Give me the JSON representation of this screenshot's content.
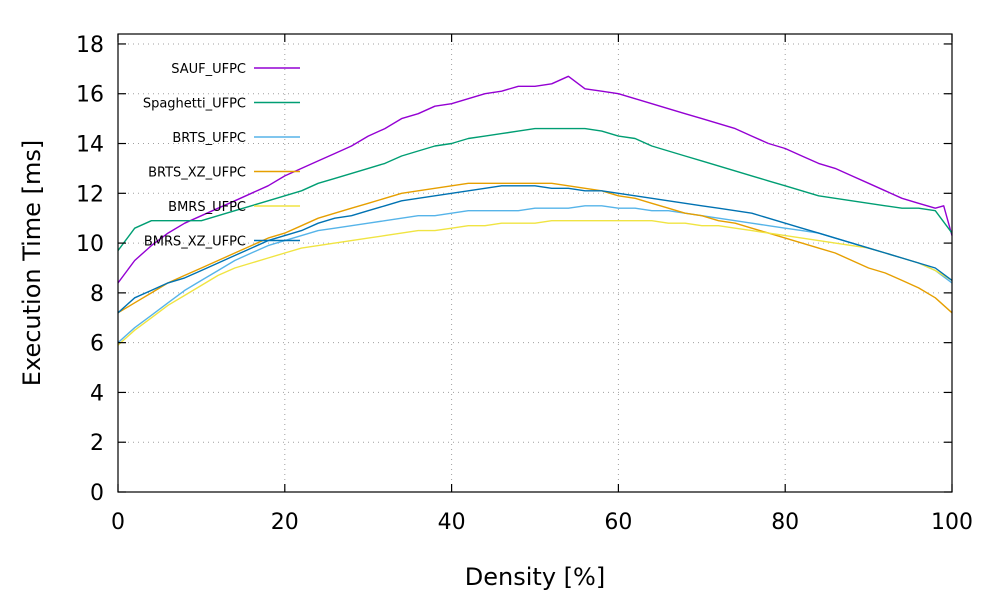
{
  "chart_data": {
    "type": "line",
    "title": "",
    "xlabel": "Density [%]",
    "ylabel": "Execution Time [ms]",
    "xlim": [
      0,
      100
    ],
    "ylim": [
      0,
      18.4
    ],
    "xticks": [
      0,
      20,
      40,
      60,
      80,
      100
    ],
    "yticks": [
      0,
      2,
      4,
      6,
      8,
      10,
      12,
      14,
      16,
      18
    ],
    "grid": true,
    "legend_position": "top-left",
    "series": [
      {
        "name": "SAUF_UFPC",
        "color": "#9400d3",
        "x": [
          0,
          2,
          4,
          6,
          8,
          10,
          12,
          14,
          16,
          18,
          20,
          22,
          24,
          26,
          28,
          30,
          32,
          34,
          36,
          38,
          40,
          42,
          44,
          46,
          48,
          50,
          52,
          54,
          56,
          58,
          60,
          62,
          64,
          66,
          68,
          70,
          72,
          74,
          76,
          78,
          80,
          82,
          84,
          86,
          88,
          90,
          92,
          94,
          96,
          98,
          99,
          100
        ],
        "y": [
          8.4,
          9.3,
          9.9,
          10.4,
          10.8,
          11.1,
          11.4,
          11.7,
          12.0,
          12.3,
          12.7,
          13.0,
          13.3,
          13.6,
          13.9,
          14.3,
          14.6,
          15.0,
          15.2,
          15.5,
          15.6,
          15.8,
          16.0,
          16.1,
          16.3,
          16.3,
          16.4,
          16.7,
          16.2,
          16.1,
          16.0,
          15.8,
          15.6,
          15.4,
          15.2,
          15.0,
          14.8,
          14.6,
          14.3,
          14.0,
          13.8,
          13.5,
          13.2,
          13.0,
          12.7,
          12.4,
          12.1,
          11.8,
          11.6,
          11.4,
          11.5,
          10.3
        ]
      },
      {
        "name": "Spaghetti_UFPC",
        "color": "#009e73",
        "x": [
          0,
          2,
          4,
          6,
          8,
          10,
          12,
          14,
          16,
          18,
          20,
          22,
          24,
          26,
          28,
          30,
          32,
          34,
          36,
          38,
          40,
          42,
          44,
          46,
          48,
          50,
          52,
          54,
          56,
          58,
          60,
          62,
          64,
          66,
          68,
          70,
          72,
          74,
          76,
          78,
          80,
          82,
          84,
          86,
          88,
          90,
          92,
          94,
          96,
          98,
          100
        ],
        "y": [
          9.7,
          10.6,
          10.9,
          10.9,
          10.9,
          10.9,
          11.1,
          11.3,
          11.5,
          11.7,
          11.9,
          12.1,
          12.4,
          12.6,
          12.8,
          13.0,
          13.2,
          13.5,
          13.7,
          13.9,
          14.0,
          14.2,
          14.3,
          14.4,
          14.5,
          14.6,
          14.6,
          14.6,
          14.6,
          14.5,
          14.3,
          14.2,
          13.9,
          13.7,
          13.5,
          13.3,
          13.1,
          12.9,
          12.7,
          12.5,
          12.3,
          12.1,
          11.9,
          11.8,
          11.7,
          11.6,
          11.5,
          11.4,
          11.4,
          11.3,
          10.4
        ]
      },
      {
        "name": "BRTS_UFPC",
        "color": "#56b4e9",
        "x": [
          0,
          2,
          4,
          6,
          8,
          10,
          12,
          14,
          16,
          18,
          20,
          22,
          24,
          26,
          28,
          30,
          32,
          34,
          36,
          38,
          40,
          42,
          44,
          46,
          48,
          50,
          52,
          54,
          56,
          58,
          60,
          62,
          64,
          66,
          68,
          70,
          72,
          74,
          76,
          78,
          80,
          82,
          84,
          86,
          88,
          90,
          92,
          94,
          96,
          98,
          100
        ],
        "y": [
          6.0,
          6.6,
          7.1,
          7.6,
          8.1,
          8.5,
          8.9,
          9.3,
          9.6,
          9.9,
          10.1,
          10.3,
          10.5,
          10.6,
          10.7,
          10.8,
          10.9,
          11.0,
          11.1,
          11.1,
          11.2,
          11.3,
          11.3,
          11.3,
          11.3,
          11.4,
          11.4,
          11.4,
          11.5,
          11.5,
          11.4,
          11.4,
          11.3,
          11.3,
          11.2,
          11.1,
          11.0,
          10.9,
          10.8,
          10.7,
          10.6,
          10.5,
          10.4,
          10.2,
          10.0,
          9.8,
          9.6,
          9.4,
          9.2,
          8.9,
          8.4
        ]
      },
      {
        "name": "BRTS_XZ_UFPC",
        "color": "#e69f00",
        "x": [
          0,
          2,
          4,
          6,
          8,
          10,
          12,
          14,
          16,
          18,
          20,
          22,
          24,
          26,
          28,
          30,
          32,
          34,
          36,
          38,
          40,
          42,
          44,
          46,
          48,
          50,
          52,
          54,
          56,
          58,
          60,
          62,
          64,
          66,
          68,
          70,
          72,
          74,
          76,
          78,
          80,
          82,
          84,
          86,
          88,
          90,
          92,
          94,
          96,
          98,
          100
        ],
        "y": [
          7.2,
          7.6,
          8.0,
          8.4,
          8.7,
          9.0,
          9.3,
          9.6,
          9.9,
          10.2,
          10.4,
          10.7,
          11.0,
          11.2,
          11.4,
          11.6,
          11.8,
          12.0,
          12.1,
          12.2,
          12.3,
          12.4,
          12.4,
          12.4,
          12.4,
          12.4,
          12.4,
          12.3,
          12.2,
          12.1,
          11.9,
          11.8,
          11.6,
          11.4,
          11.2,
          11.1,
          10.9,
          10.8,
          10.6,
          10.4,
          10.2,
          10.0,
          9.8,
          9.6,
          9.3,
          9.0,
          8.8,
          8.5,
          8.2,
          7.8,
          7.2
        ]
      },
      {
        "name": "BMRS_UFPC",
        "color": "#f0e442",
        "x": [
          0,
          2,
          4,
          6,
          8,
          10,
          12,
          14,
          16,
          18,
          20,
          22,
          24,
          26,
          28,
          30,
          32,
          34,
          36,
          38,
          40,
          42,
          44,
          46,
          48,
          50,
          52,
          54,
          56,
          58,
          60,
          62,
          64,
          66,
          68,
          70,
          72,
          74,
          76,
          78,
          80,
          82,
          84,
          86,
          88,
          90,
          92,
          94,
          96,
          98,
          100
        ],
        "y": [
          5.9,
          6.5,
          7.0,
          7.5,
          7.9,
          8.3,
          8.7,
          9.0,
          9.2,
          9.4,
          9.6,
          9.8,
          9.9,
          10.0,
          10.1,
          10.2,
          10.3,
          10.4,
          10.5,
          10.5,
          10.6,
          10.7,
          10.7,
          10.8,
          10.8,
          10.8,
          10.9,
          10.9,
          10.9,
          10.9,
          10.9,
          10.9,
          10.9,
          10.8,
          10.8,
          10.7,
          10.7,
          10.6,
          10.5,
          10.4,
          10.3,
          10.2,
          10.1,
          10.0,
          9.9,
          9.8,
          9.6,
          9.4,
          9.2,
          8.9,
          8.5
        ]
      },
      {
        "name": "BMRS_XZ_UFPC",
        "color": "#0072b2",
        "x": [
          0,
          2,
          4,
          6,
          8,
          10,
          12,
          14,
          16,
          18,
          20,
          22,
          24,
          26,
          28,
          30,
          32,
          34,
          36,
          38,
          40,
          42,
          44,
          46,
          48,
          50,
          52,
          54,
          56,
          58,
          60,
          62,
          64,
          66,
          68,
          70,
          72,
          74,
          76,
          78,
          80,
          82,
          84,
          86,
          88,
          90,
          92,
          94,
          96,
          98,
          100
        ],
        "y": [
          7.2,
          7.8,
          8.1,
          8.4,
          8.6,
          8.9,
          9.2,
          9.5,
          9.8,
          10.1,
          10.3,
          10.5,
          10.8,
          11.0,
          11.1,
          11.3,
          11.5,
          11.7,
          11.8,
          11.9,
          12.0,
          12.1,
          12.2,
          12.3,
          12.3,
          12.3,
          12.2,
          12.2,
          12.1,
          12.1,
          12.0,
          11.9,
          11.8,
          11.7,
          11.6,
          11.5,
          11.4,
          11.3,
          11.2,
          11.0,
          10.8,
          10.6,
          10.4,
          10.2,
          10.0,
          9.8,
          9.6,
          9.4,
          9.2,
          9.0,
          8.5
        ]
      }
    ]
  }
}
